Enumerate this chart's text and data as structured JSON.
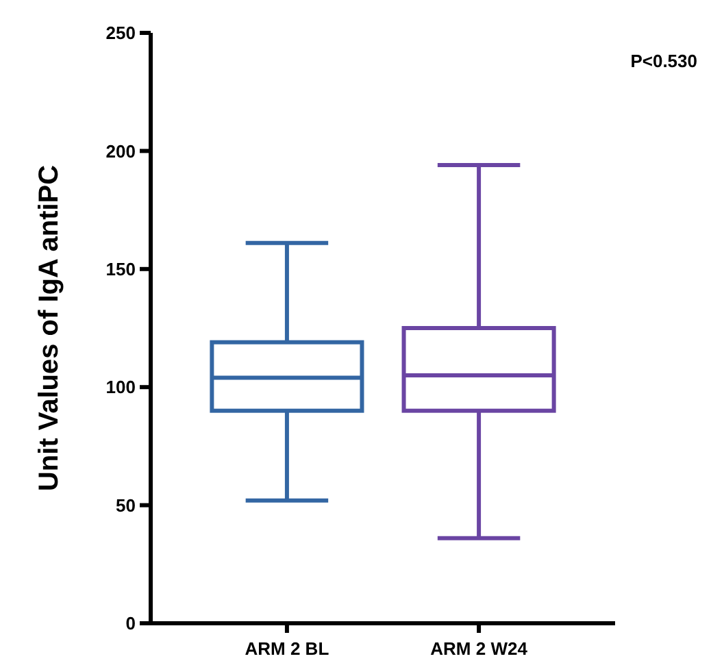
{
  "chart_data": {
    "type": "box",
    "ylabel": "Unit Values of  IgA antiPC",
    "categories": [
      "ARM 2 BL",
      "ARM 2 W24"
    ],
    "series": [
      {
        "color": "#3366a3",
        "boxes": [
          {
            "low": 52,
            "q1": 90,
            "median": 104,
            "q3": 119,
            "high": 161
          },
          null
        ]
      },
      {
        "color": "#6a45a3",
        "boxes": [
          null,
          {
            "low": 36,
            "q1": 90,
            "median": 105,
            "q3": 125,
            "high": 194
          }
        ]
      }
    ],
    "ylim": [
      0,
      250
    ],
    "yticks": [
      0,
      50,
      100,
      150,
      200,
      250
    ],
    "annotations": [
      "P<0.530"
    ]
  }
}
